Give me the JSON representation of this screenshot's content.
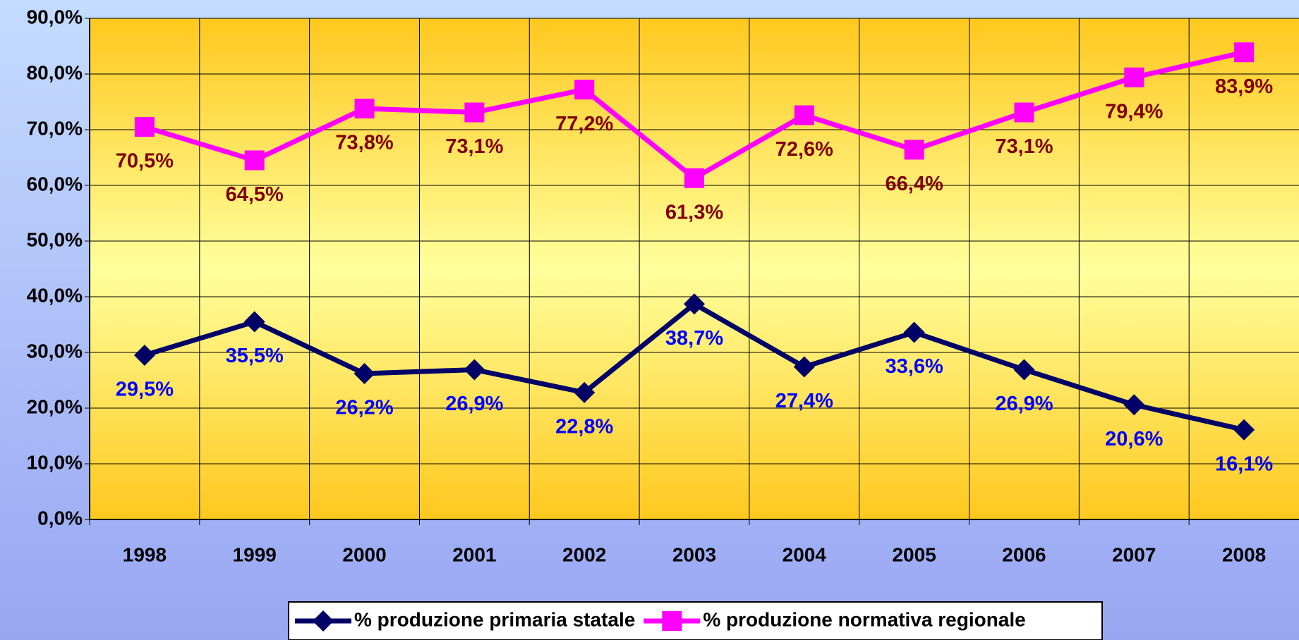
{
  "chart_data": {
    "type": "line",
    "categories": [
      "1998",
      "1999",
      "2000",
      "2001",
      "2002",
      "2003",
      "2004",
      "2005",
      "2006",
      "2007",
      "2008"
    ],
    "series": [
      {
        "name": "% produzione primaria statale",
        "color": "#000066",
        "marker": "diamond",
        "label_color": "#0000ff",
        "values": [
          29.5,
          35.5,
          26.2,
          26.9,
          22.8,
          38.7,
          27.4,
          33.6,
          26.9,
          20.6,
          16.1
        ],
        "value_labels": [
          "29,5%",
          "35,5%",
          "26,2%",
          "26,9%",
          "22,8%",
          "38,7%",
          "27,4%",
          "33,6%",
          "26,9%",
          "20,6%",
          "16,1%"
        ]
      },
      {
        "name": "% produzione normativa regionale",
        "color": "#ff00ff",
        "marker": "square",
        "label_color": "#800000",
        "values": [
          70.5,
          64.5,
          73.8,
          73.1,
          77.2,
          61.3,
          72.6,
          66.4,
          73.1,
          79.4,
          83.9
        ],
        "value_labels": [
          "70,5%",
          "64,5%",
          "73,8%",
          "73,1%",
          "77,2%",
          "61,3%",
          "72,6%",
          "66,4%",
          "73,1%",
          "79,4%",
          "83,9%"
        ]
      }
    ],
    "ylim": [
      0,
      90
    ],
    "yticks": [
      {
        "value": 0,
        "label": "0,0%"
      },
      {
        "value": 10,
        "label": "10,0%"
      },
      {
        "value": 20,
        "label": "20,0%"
      },
      {
        "value": 30,
        "label": "30,0%"
      },
      {
        "value": 40,
        "label": "40,0%"
      },
      {
        "value": 50,
        "label": "50,0%"
      },
      {
        "value": 60,
        "label": "60,0%"
      },
      {
        "value": 70,
        "label": "70,0%"
      },
      {
        "value": 80,
        "label": "80,0%"
      },
      {
        "value": 90,
        "label": "90,0%"
      }
    ],
    "grid": true,
    "legend": "bottom"
  }
}
